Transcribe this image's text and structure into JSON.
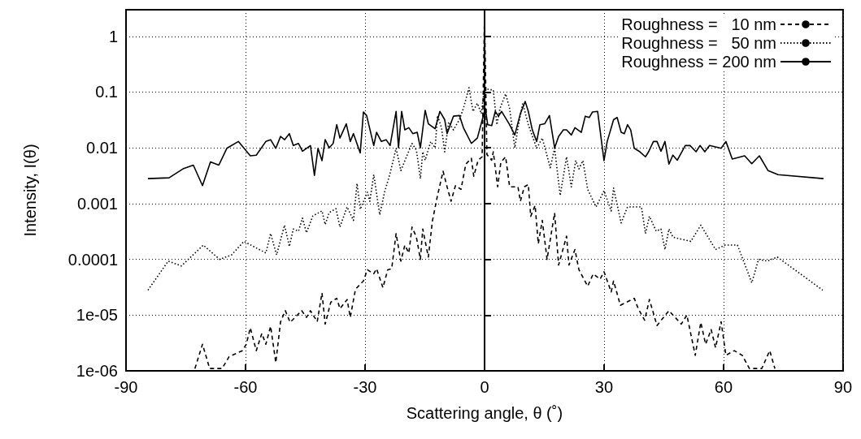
{
  "chart_data": {
    "type": "line",
    "xlabel": "Scattering angle, θ (˚)",
    "ylabel": "Intensity, I(θ)",
    "xlim": [
      -90,
      90
    ],
    "xticks": [
      -90,
      -60,
      -30,
      0,
      30,
      60,
      90
    ],
    "ylim": [
      1e-06,
      3
    ],
    "yticks": [
      {
        "value": 1e-06,
        "label": "1e-06"
      },
      {
        "value": 1e-05,
        "label": "1e-05"
      },
      0.0001,
      0.001,
      0.01,
      0.1,
      1
    ],
    "log": "y",
    "grid": true,
    "legend": "top right",
    "marker": "none",
    "series": [
      {
        "name": "Roughness =   10 nm",
        "color": "#000000",
        "line_style": "dashed",
        "x": [
          -72.7,
          -70.8,
          -69.0,
          -65.9,
          -64.1,
          -60.8,
          -59.8,
          -58.8,
          -57.3,
          -55.9,
          -54.9,
          -53.7,
          -52.4,
          -51.2,
          -50.0,
          -48.8,
          -45.9,
          -44.7,
          -43.7,
          -42.0,
          -40.8,
          -40.0,
          -38.6,
          -37.1,
          -36.3,
          -34.5,
          -33.7,
          -32.4,
          -30.4,
          -29.4,
          -27.8,
          -27.1,
          -25.5,
          -24.3,
          -23.3,
          -22.2,
          -21.0,
          -20.0,
          -19.0,
          -18.2,
          -17.1,
          -16.1,
          -15.5,
          -14.1,
          -13.1,
          -11.8,
          -10.4,
          -9.4,
          -8.4,
          -7.3,
          -5.9,
          -4.7,
          -3.3,
          -2.7,
          -1.6,
          -0.6,
          0,
          0.6,
          1.8,
          2.2,
          3.3,
          4.1,
          5.3,
          6.3,
          8.4,
          9.0,
          10.0,
          11.0,
          11.6,
          12.7,
          13.5,
          14.5,
          15.7,
          17.6,
          18.6,
          20.6,
          21.2,
          22.7,
          23.7,
          25.9,
          27.3,
          29.0,
          30.0,
          31.8,
          32.4,
          34.1,
          37.6,
          38.6,
          40.2,
          41.4,
          43.3,
          46.3,
          49.4,
          50.8,
          52.9,
          54.3,
          55.5,
          56.9,
          58.0,
          59.4,
          60.6,
          62.7,
          64.7,
          66.5,
          69.6,
          71.6,
          72.9
        ],
        "values": [
          1.1e-06,
          3e-06,
          1.1e-06,
          1.1e-06,
          1.8e-06,
          2.3e-06,
          3e-06,
          5.9e-06,
          2.3e-06,
          4.7e-06,
          3e-06,
          6.3e-06,
          1.4e-06,
          7.6e-06,
          1.2e-05,
          7.4e-06,
          1.2e-05,
          9.1e-06,
          1.2e-05,
          7.6e-06,
          2.5e-05,
          6.9e-06,
          1.7e-05,
          2e-05,
          1.3e-05,
          1.9e-05,
          9.1e-06,
          2.9e-05,
          4.1e-05,
          6.5e-05,
          5.5e-05,
          6.8e-05,
          3.1e-05,
          6.5e-05,
          6.8e-05,
          0.00029,
          9.3e-05,
          0.00018,
          0.00013,
          0.00038,
          0.00025,
          0.0001,
          0.00035,
          0.00011,
          0.00048,
          0.0014,
          0.0038,
          0.002,
          0.0011,
          0.0021,
          0.0018,
          0.0051,
          0.0065,
          0.0031,
          0.006,
          0.0069,
          2.5,
          0.0076,
          0.006,
          0.0085,
          0.002,
          0.0055,
          0.0069,
          0.002,
          0.002,
          0.0011,
          0.002,
          0.0022,
          0.00059,
          0.00093,
          0.00019,
          0.0005,
          0.0001,
          0.00068,
          7.9e-05,
          0.00026,
          7.9e-05,
          0.00015,
          6.5e-05,
          3.3e-05,
          5.5e-05,
          4.4e-05,
          6e-05,
          2.6e-05,
          4.1e-05,
          1.5e-05,
          2e-05,
          1.3e-05,
          8.1e-06,
          1.9e-05,
          6.5e-06,
          1.2e-05,
          6.9e-06,
          1e-05,
          1.9e-06,
          7.4e-06,
          3e-06,
          5.5e-06,
          2.6e-06,
          7.6e-06,
          1.9e-06,
          2.3e-06,
          1.9e-06,
          1.1e-06,
          1.1e-06,
          2.3e-06,
          1.1e-06
        ]
      },
      {
        "name": "Roughness =   50 nm",
        "color": "#000000",
        "line_style": "dotted",
        "x": [
          -84.5,
          -79.4,
          -76.1,
          -70.6,
          -66.5,
          -63.5,
          -60.4,
          -54.9,
          -53.7,
          -52.2,
          -50.2,
          -49.0,
          -48.0,
          -46.7,
          -45.7,
          -44.7,
          -43.1,
          -40.8,
          -40.0,
          -39.0,
          -37.3,
          -36.3,
          -34.5,
          -32.9,
          -32.0,
          -31.2,
          -29.4,
          -28.8,
          -27.8,
          -26.3,
          -25.1,
          -23.7,
          -22.2,
          -21.0,
          -19.6,
          -18.2,
          -17.1,
          -16.1,
          -15.5,
          -14.9,
          -13.5,
          -12.4,
          -11.8,
          -10.8,
          -10.0,
          -9.0,
          -7.8,
          -6.3,
          -5.3,
          -3.9,
          -2.9,
          -1.8,
          -0.8,
          0,
          1.2,
          2.2,
          3.1,
          3.9,
          5.3,
          6.3,
          7.6,
          8.4,
          9.6,
          11.0,
          13.1,
          14.5,
          16.5,
          17.6,
          19.0,
          20.6,
          21.8,
          22.9,
          23.7,
          24.7,
          25.9,
          28.0,
          30.0,
          31.8,
          32.4,
          34.3,
          35.9,
          39.4,
          40.4,
          41.4,
          43.1,
          44.3,
          45.3,
          46.3,
          47.3,
          51.8,
          54.3,
          58.0,
          60.4,
          63.5,
          67.1,
          68.8,
          71.0,
          73.5,
          84.9
        ],
        "values": [
          2.8e-05,
          9.3e-05,
          7.6e-05,
          0.00018,
          0.0001,
          0.00012,
          0.00021,
          0.00013,
          0.00029,
          0.00012,
          0.00041,
          0.00017,
          0.00035,
          0.00032,
          0.00055,
          0.0003,
          0.0006,
          0.00074,
          0.00042,
          0.00069,
          0.00081,
          0.00038,
          0.00087,
          0.0005,
          0.0023,
          0.00079,
          0.0016,
          0.0011,
          0.0033,
          0.00063,
          0.0016,
          0.0035,
          0.0098,
          0.0039,
          0.0069,
          0.012,
          0.0091,
          0.0028,
          0.0085,
          0.006,
          0.013,
          0.01,
          0.038,
          0.023,
          0.0085,
          0.029,
          0.021,
          0.032,
          0.051,
          0.12,
          0.045,
          0.063,
          0.041,
          0.12,
          0.11,
          0.11,
          0.026,
          0.051,
          0.093,
          0.051,
          0.01,
          0.023,
          0.063,
          0.026,
          0.0098,
          0.015,
          0.0044,
          0.0098,
          0.0014,
          0.0069,
          0.002,
          0.0059,
          0.0042,
          0.0059,
          0.0018,
          0.00087,
          0.0017,
          0.00074,
          0.0019,
          0.00045,
          0.00087,
          0.00087,
          0.00029,
          0.00059,
          0.00032,
          0.00035,
          0.00015,
          0.00035,
          0.00025,
          0.00021,
          0.00041,
          0.00015,
          0.00018,
          0.00018,
          3.8e-05,
          0.0001,
          9.3e-05,
          0.00011,
          2.8e-05
        ]
      },
      {
        "name": "Roughness = 200 nm",
        "color": "#000000",
        "line_style": "solid",
        "x": [
          -84.5,
          -79.2,
          -75.7,
          -73.1,
          -70.8,
          -68.8,
          -66.7,
          -64.7,
          -61.8,
          -58.8,
          -57.3,
          -54.9,
          -53.7,
          -52.4,
          -51.2,
          -50.2,
          -49.0,
          -48.0,
          -46.7,
          -45.7,
          -43.7,
          -42.7,
          -41.8,
          -40.8,
          -40.0,
          -39.0,
          -38.0,
          -37.1,
          -36.3,
          -34.7,
          -33.7,
          -32.9,
          -31.2,
          -30.4,
          -29.6,
          -27.8,
          -27.1,
          -25.9,
          -24.7,
          -23.7,
          -22.2,
          -21.6,
          -20.8,
          -20.0,
          -19.0,
          -18.0,
          -16.9,
          -16.1,
          -14.9,
          -14.1,
          -12.4,
          -11.2,
          -10.0,
          -9.4,
          -7.8,
          -6.3,
          -5.3,
          -3.3,
          -1.8,
          0.2,
          0.8,
          1.8,
          2.7,
          3.5,
          4.3,
          6.3,
          7.6,
          9.0,
          10.2,
          11.0,
          12.0,
          13.1,
          13.9,
          15.1,
          16.3,
          17.6,
          18.6,
          19.8,
          20.6,
          21.8,
          22.7,
          24.3,
          25.3,
          26.3,
          27.1,
          28.4,
          30.0,
          30.8,
          32.4,
          33.3,
          34.3,
          35.1,
          35.9,
          36.7,
          37.6,
          39.0,
          40.4,
          41.2,
          42.4,
          43.3,
          44.3,
          45.3,
          46.3,
          47.3,
          48.4,
          50.4,
          51.6,
          53.1,
          54.1,
          55.3,
          56.5,
          59.4,
          60.6,
          62.2,
          65.3,
          67.1,
          69.0,
          71.2,
          73.7,
          85.1
        ],
        "values": [
          0.0028,
          0.0029,
          0.0042,
          0.0049,
          0.0021,
          0.0056,
          0.0049,
          0.0098,
          0.013,
          0.0072,
          0.0074,
          0.013,
          0.014,
          0.0098,
          0.016,
          0.014,
          0.018,
          0.011,
          0.012,
          0.0087,
          0.011,
          0.0032,
          0.0098,
          0.0059,
          0.014,
          0.01,
          0.012,
          0.026,
          0.015,
          0.027,
          0.013,
          0.018,
          0.0081,
          0.044,
          0.038,
          0.011,
          0.019,
          0.013,
          0.014,
          0.011,
          0.045,
          0.01,
          0.045,
          0.021,
          0.023,
          0.018,
          0.019,
          0.01,
          0.047,
          0.027,
          0.022,
          0.045,
          0.032,
          0.018,
          0.037,
          0.038,
          0.023,
          0.012,
          0.015,
          0.051,
          0.026,
          0.025,
          0.045,
          0.037,
          0.045,
          0.026,
          0.017,
          0.041,
          0.068,
          0.045,
          0.021,
          0.013,
          0.026,
          0.027,
          0.038,
          0.01,
          0.016,
          0.021,
          0.021,
          0.017,
          0.023,
          0.019,
          0.037,
          0.035,
          0.044,
          0.045,
          0.0059,
          0.013,
          0.032,
          0.035,
          0.019,
          0.018,
          0.026,
          0.021,
          0.0098,
          0.0085,
          0.0069,
          0.0085,
          0.013,
          0.013,
          0.0087,
          0.013,
          0.0051,
          0.0074,
          0.006,
          0.011,
          0.011,
          0.0085,
          0.011,
          0.0085,
          0.011,
          0.0098,
          0.013,
          0.0063,
          0.0072,
          0.0052,
          0.0072,
          0.0039,
          0.0033,
          0.0028
        ]
      }
    ]
  }
}
